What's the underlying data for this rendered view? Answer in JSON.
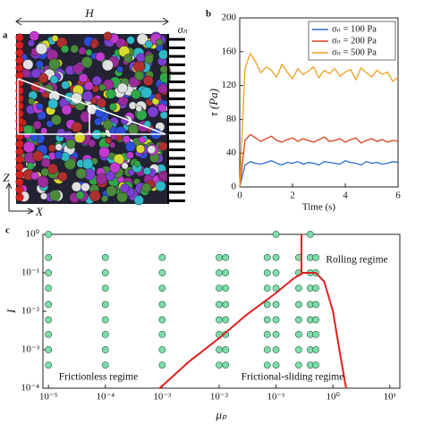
{
  "panel_a": {
    "panel_label": "a",
    "width_label": "H",
    "stress_label": "σₙ",
    "axis_z": "Z",
    "axis_x": "X"
  },
  "chart_data": [
    {
      "type": "line",
      "panel_label": "b",
      "xlabel": "Time (s)",
      "ylabel": "τ (Pa)",
      "x": [
        0,
        0.2,
        0.4,
        0.6,
        0.8,
        1,
        1.2,
        1.4,
        1.6,
        1.8,
        2,
        2.2,
        2.4,
        2.6,
        2.8,
        3,
        3.2,
        3.4,
        3.6,
        3.8,
        4,
        4.2,
        4.4,
        4.6,
        4.8,
        5,
        5.2,
        5.4,
        5.6,
        5.8,
        6
      ],
      "series": [
        {
          "name": "σₙ = 100 Pa",
          "color": "#2f6fd0",
          "values": [
            0,
            26,
            30,
            28,
            27,
            29,
            31,
            28,
            26,
            29,
            28,
            30,
            27,
            29,
            28,
            26,
            30,
            29,
            28,
            27,
            31,
            29,
            28,
            26,
            30,
            28,
            29,
            27,
            28,
            30,
            29
          ]
        },
        {
          "name": "σₙ = 200 Pa",
          "color": "#d9411e",
          "values": [
            0,
            55,
            62,
            58,
            54,
            57,
            60,
            55,
            53,
            56,
            58,
            54,
            57,
            55,
            53,
            56,
            59,
            54,
            55,
            57,
            53,
            56,
            58,
            52,
            55,
            57,
            54,
            56,
            53,
            55,
            54
          ]
        },
        {
          "name": "σₙ = 500 Pa",
          "color": "#f0a020",
          "values": [
            0,
            140,
            158,
            148,
            135,
            142,
            138,
            130,
            145,
            136,
            128,
            140,
            133,
            137,
            142,
            129,
            138,
            134,
            140,
            131,
            136,
            139,
            127,
            141,
            135,
            130,
            138,
            133,
            136,
            125,
            130
          ]
        }
      ],
      "xlim": [
        0,
        6
      ],
      "xticks": [
        0,
        2,
        4,
        6
      ],
      "ylim": [
        0,
        200
      ],
      "yticks": [
        0,
        40,
        80,
        120,
        160,
        200
      ],
      "legend": "upper right"
    },
    {
      "type": "scatter",
      "panel_label": "c",
      "xlabel": "μₚ",
      "ylabel": "I",
      "log_x": true,
      "log_y": true,
      "xlim": [
        8e-06,
        15
      ],
      "xticks": [
        {
          "value": 1e-05,
          "label": "10⁻⁵"
        },
        {
          "value": 0.0001,
          "label": "10⁻⁴"
        },
        {
          "value": 0.001,
          "label": "10⁻³"
        },
        {
          "value": 0.01,
          "label": "10⁻²"
        },
        {
          "value": 0.1,
          "label": "10⁻¹"
        },
        {
          "value": 1,
          "label": "10⁰"
        },
        {
          "value": 10,
          "label": "10¹"
        }
      ],
      "ylim": [
        0.0001,
        1
      ],
      "yticks": [
        {
          "value": 0.0001,
          "label": "10⁻⁴"
        },
        {
          "value": 0.001,
          "label": "10⁻³"
        },
        {
          "value": 0.01,
          "label": "10⁻²"
        },
        {
          "value": 0.1,
          "label": "10⁻¹"
        },
        {
          "value": 1,
          "label": "10⁰"
        }
      ],
      "annotations": [
        "Rolling regime",
        "Frictionless regime",
        "Frictional-sliding regime"
      ],
      "series": [
        {
          "type": "scatter",
          "color": "#7fdcaa",
          "x": [
            1e-05,
            1e-05,
            1e-05,
            1e-05,
            1e-05,
            1e-05,
            1e-05,
            1e-05,
            1e-05,
            0.0001,
            0.0001,
            0.0001,
            0.0001,
            0.0001,
            0.0001,
            0.0001,
            0.0001,
            0.001,
            0.001,
            0.001,
            0.001,
            0.001,
            0.001,
            0.001,
            0.001,
            0.01,
            0.01,
            0.01,
            0.01,
            0.01,
            0.01,
            0.01,
            0.01,
            0.013,
            0.013,
            0.013,
            0.013,
            0.013,
            0.013,
            0.013,
            0.013,
            0.07,
            0.07,
            0.07,
            0.07,
            0.07,
            0.07,
            0.07,
            0.07,
            0.1,
            0.1,
            0.1,
            0.1,
            0.1,
            0.1,
            0.1,
            0.1,
            0.1,
            0.25,
            0.25,
            0.25,
            0.25,
            0.25,
            0.25,
            0.25,
            0.25,
            0.4,
            0.4,
            0.4,
            0.4,
            0.4,
            0.4,
            0.4,
            0.4,
            0.4,
            0.5,
            0.5,
            0.5,
            0.5,
            0.5,
            0.5,
            0.5,
            0.5
          ],
          "values": [
            1,
            0.25,
            0.1,
            0.04,
            0.015,
            0.006,
            0.0025,
            0.001,
            0.0004,
            0.25,
            0.1,
            0.04,
            0.015,
            0.006,
            0.0025,
            0.001,
            0.0004,
            0.25,
            0.1,
            0.04,
            0.015,
            0.006,
            0.0025,
            0.001,
            0.0004,
            0.25,
            0.1,
            0.04,
            0.015,
            0.006,
            0.0025,
            0.001,
            0.0004,
            0.25,
            0.1,
            0.04,
            0.015,
            0.006,
            0.0025,
            0.001,
            0.0004,
            0.25,
            0.1,
            0.04,
            0.015,
            0.006,
            0.0025,
            0.001,
            0.0004,
            1,
            0.25,
            0.1,
            0.04,
            0.015,
            0.006,
            0.0025,
            0.001,
            0.0004,
            0.25,
            0.1,
            0.04,
            0.015,
            0.006,
            0.0025,
            0.001,
            0.0004,
            1,
            0.25,
            0.1,
            0.04,
            0.015,
            0.006,
            0.0025,
            0.001,
            0.0004,
            0.25,
            0.1,
            0.04,
            0.015,
            0.006,
            0.0025,
            0.001,
            0.0004
          ]
        },
        {
          "type": "line",
          "color": "#e02020",
          "x": [
            0.0009,
            0.003,
            0.01,
            0.03,
            0.1,
            0.2,
            0.3,
            0.5,
            0.7,
            1,
            1.3,
            1.7
          ],
          "values": [
            0.0001,
            0.0005,
            0.002,
            0.008,
            0.03,
            0.07,
            0.1,
            0.1,
            0.06,
            0.01,
            0.001,
            0.0001
          ]
        },
        {
          "type": "line",
          "color": "#e02020",
          "x": [
            0.28,
            0.28
          ],
          "values": [
            1,
            0.1
          ]
        }
      ]
    }
  ]
}
